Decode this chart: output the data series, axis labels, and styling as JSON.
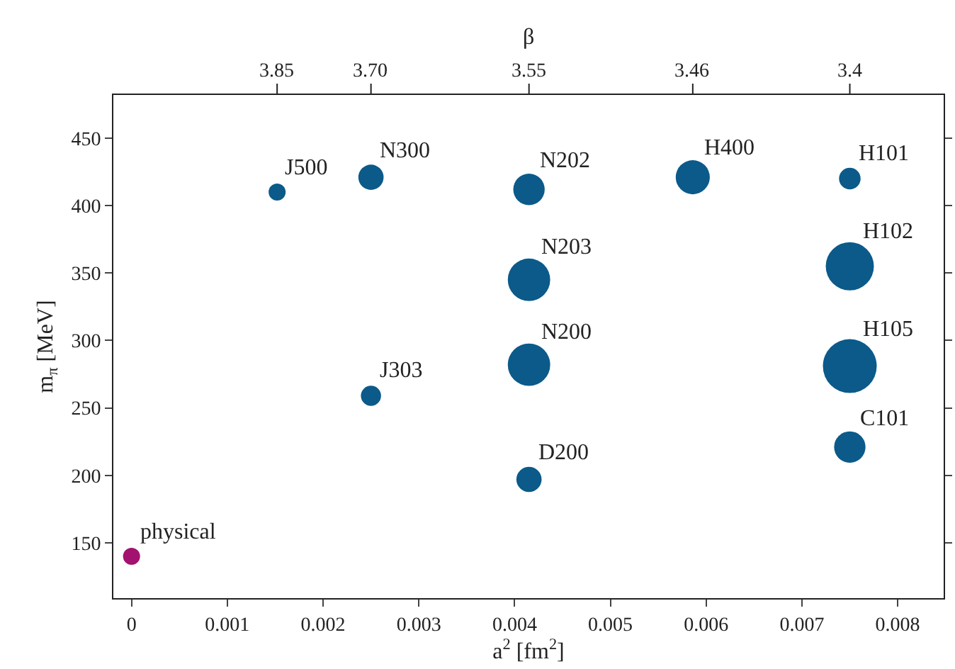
{
  "chart_data": {
    "type": "bubble",
    "xlabel": "a$^{2}$ [fm$^{2}$]",
    "ylabel": "m$_{π}$ [MeV]",
    "x": [
      0.00152,
      0.0025,
      0.00415,
      0.00586,
      0.0075,
      0.00415,
      0.0075,
      0.00415,
      0.0075,
      0.0025,
      0.0075,
      0.00415,
      0
    ],
    "values": [
      410,
      421,
      412,
      421,
      420,
      345,
      355,
      282,
      281,
      259,
      221,
      197,
      140
    ],
    "sizes": [
      0.1,
      0.22,
      0.34,
      0.4,
      0.16,
      0.62,
      0.8,
      0.62,
      1,
      0.14,
      0.34,
      0.22,
      0.1
    ],
    "colors": [
      "#0b5a8a",
      "#0b5a8a",
      "#0b5a8a",
      "#0b5a8a",
      "#0b5a8a",
      "#0b5a8a",
      "#0b5a8a",
      "#0b5a8a",
      "#0b5a8a",
      "#0b5a8a",
      "#0b5a8a",
      "#0b5a8a",
      "#a3126f"
    ],
    "annotations": [
      {
        "text": "J500",
        "x": 0.00152,
        "y": 410
      },
      {
        "text": "N300",
        "x": 0.0025,
        "y": 421
      },
      {
        "text": "N202",
        "x": 0.00415,
        "y": 412
      },
      {
        "text": "H400",
        "x": 0.00586,
        "y": 421
      },
      {
        "text": "H101",
        "x": 0.0075,
        "y": 420
      },
      {
        "text": "N203",
        "x": 0.00415,
        "y": 345
      },
      {
        "text": "H102",
        "x": 0.0075,
        "y": 355
      },
      {
        "text": "N200",
        "x": 0.00415,
        "y": 282
      },
      {
        "text": "H105",
        "x": 0.0075,
        "y": 281
      },
      {
        "text": "J303",
        "x": 0.0025,
        "y": 259
      },
      {
        "text": "C101",
        "x": 0.0075,
        "y": 221
      },
      {
        "text": "D200",
        "x": 0.00415,
        "y": 197
      },
      {
        "text": "physical",
        "x": 0,
        "y": 140
      },
      "β",
      "3.85",
      "3.70",
      "3.55",
      "3.46",
      "3.4"
    ],
    "xlim": [
      -0.00019,
      0.00848
    ],
    "xticks": [
      0,
      0.001,
      0.002,
      0.003,
      0.004,
      0.005,
      0.006,
      0.007,
      0.008
    ],
    "ylim": [
      109,
      482
    ],
    "yticks": [
      150,
      200,
      250,
      300,
      350,
      400,
      450
    ],
    "marker": "circle",
    "grid": false
  }
}
